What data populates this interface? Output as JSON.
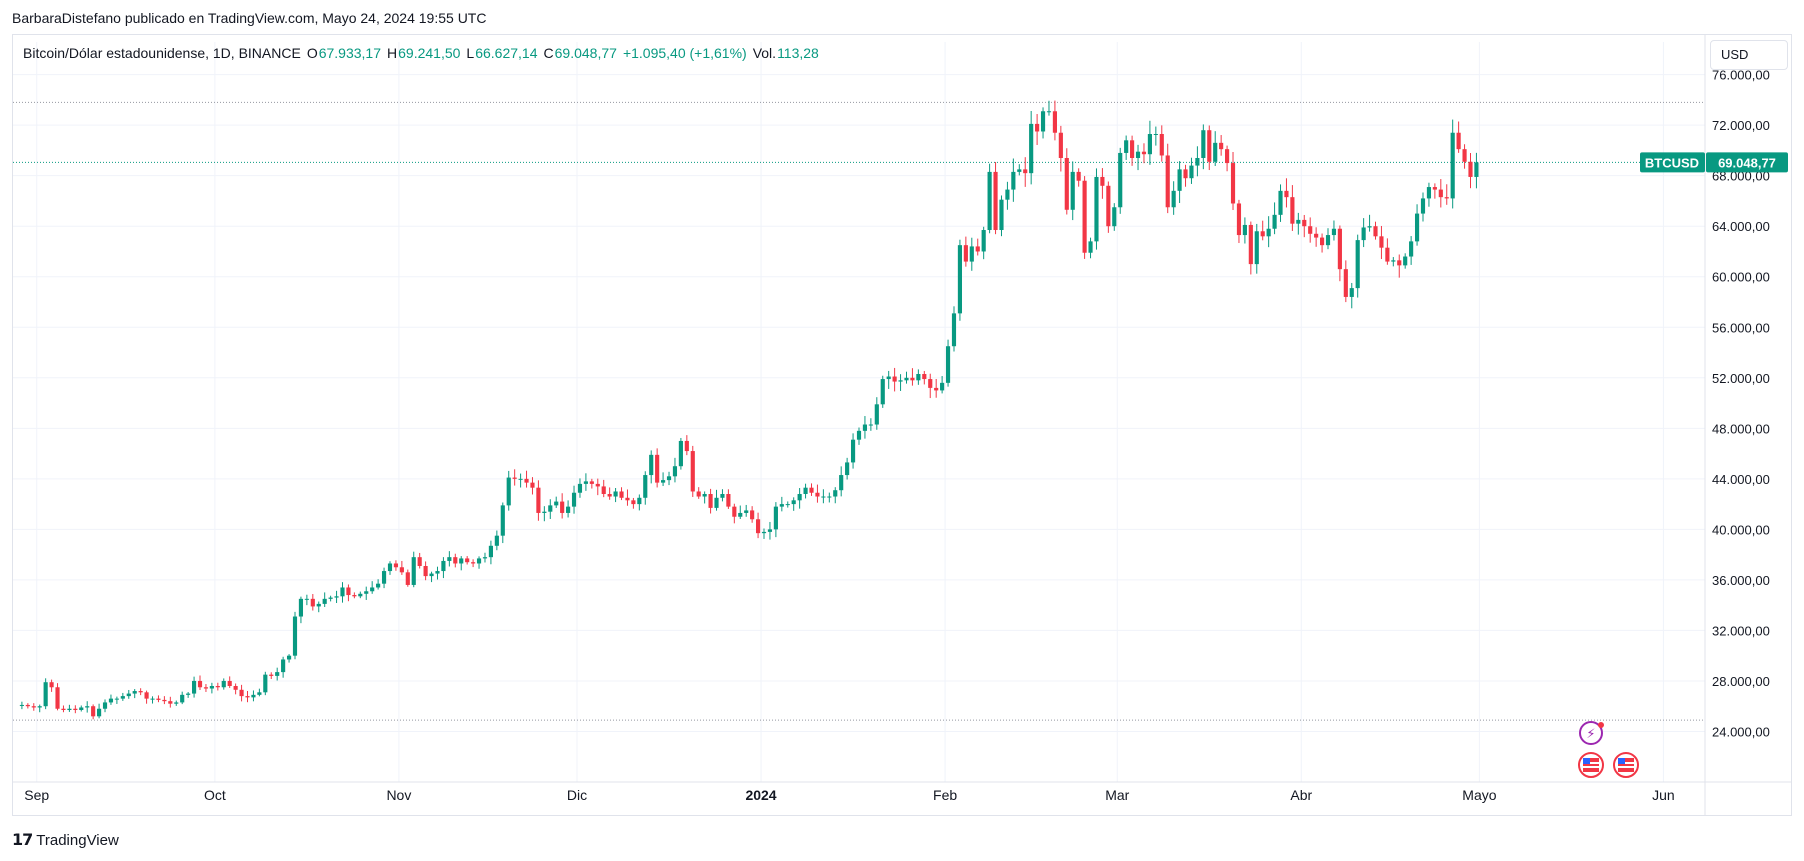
{
  "header": {
    "publisher_line": "BarbaraDistefano publicado en TradingView.com, Mayo 24, 2024 19:55 UTC"
  },
  "legend": {
    "symbol": "Bitcoin/Dólar estadounidense, 1D, BINANCE",
    "open_label": "O",
    "open_value": "67.933,17",
    "high_label": "H",
    "high_value": "69.241,50",
    "low_label": "L",
    "low_value": "66.627,14",
    "close_label": "C",
    "close_value": "69.048,77",
    "change": "+1.095,40 (+1,61%)",
    "vol_label": "Vol.",
    "vol_value": "113,28"
  },
  "currency_button": "USD",
  "price_tag": {
    "ticker": "BTCUSD",
    "price": "69.048,77"
  },
  "footer": {
    "brand": "TradingView"
  },
  "colors": {
    "up": "#089981",
    "down": "#f23645",
    "grid": "#f0f3fa",
    "text": "#131722",
    "dotted": "#9598a1"
  },
  "chart_data": {
    "type": "candlestick",
    "y_axis": {
      "ylim": [
        20000,
        77000
      ],
      "ticks": [
        24000,
        28000,
        32000,
        36000,
        40000,
        44000,
        48000,
        52000,
        56000,
        60000,
        64000,
        68000,
        72000,
        76000
      ],
      "tick_labels": [
        "24.000,00",
        "28.000,00",
        "32.000,00",
        "36.000,00",
        "40.000,00",
        "44.000,00",
        "48.000,00",
        "52.000,00",
        "56.000,00",
        "60.000,00",
        "64.000,00",
        "68.000,00",
        "72.000,00",
        "76.000,00"
      ],
      "position": "right"
    },
    "x_axis": {
      "range": [
        "2023-08-28",
        "2024-06-08"
      ],
      "ticks": [
        {
          "date": "2023-09-01",
          "label": "Sep",
          "bold": false
        },
        {
          "date": "2023-10-01",
          "label": "Oct",
          "bold": false
        },
        {
          "date": "2023-11-01",
          "label": "Nov",
          "bold": false
        },
        {
          "date": "2023-12-01",
          "label": "Dic",
          "bold": false
        },
        {
          "date": "2024-01-01",
          "label": "2024",
          "bold": true
        },
        {
          "date": "2024-02-01",
          "label": "Feb",
          "bold": false
        },
        {
          "date": "2024-03-01",
          "label": "Mar",
          "bold": false
        },
        {
          "date": "2024-04-01",
          "label": "Abr",
          "bold": false
        },
        {
          "date": "2024-05-01",
          "label": "Mayo",
          "bold": false
        },
        {
          "date": "2024-06-01",
          "label": "Jun",
          "bold": false
        }
      ]
    },
    "grid": true,
    "horizontal_levels": [
      73800,
      24900
    ],
    "last_price_level": 69048.77,
    "closes": [
      26100,
      26000,
      25900,
      26000,
      27900,
      27500,
      25800,
      25700,
      25800,
      25700,
      25900,
      26000,
      25200,
      25800,
      26300,
      26600,
      26600,
      26800,
      27000,
      27200,
      27100,
      26600,
      26600,
      26500,
      26400,
      26200,
      26300,
      26900,
      27000,
      28000,
      27500,
      27400,
      27600,
      27500,
      28000,
      27600,
      27300,
      26800,
      26700,
      26900,
      27100,
      28500,
      28400,
      28700,
      29700,
      30000,
      33100,
      34500,
      34500,
      33900,
      34100,
      34500,
      34600,
      34700,
      35400,
      34800,
      34700,
      34900,
      35100,
      35400,
      35700,
      36700,
      37300,
      37000,
      36600,
      35600,
      37800,
      37100,
      36300,
      36500,
      36700,
      37500,
      37800,
      37300,
      37700,
      37400,
      37300,
      37700,
      37800,
      38700,
      39500,
      41900,
      44100,
      44000,
      44000,
      43700,
      43300,
      41300,
      41400,
      41900,
      42200,
      41300,
      41800,
      42900,
      43600,
      43800,
      43600,
      43400,
      42800,
      42600,
      43000,
      42500,
      42300,
      42000,
      42500,
      44300,
      45900,
      43700,
      43900,
      44200,
      45000,
      47000,
      46200,
      43000,
      42600,
      42800,
      41700,
      42500,
      42800,
      41800,
      41000,
      41300,
      41500,
      40800,
      39700,
      39800,
      40000,
      41800,
      42000,
      42000,
      42300,
      42800,
      43300,
      42900,
      42600,
      42600,
      42600,
      43100,
      44300,
      45300,
      47100,
      47800,
      48300,
      48300,
      49900,
      51900,
      52100,
      51700,
      51800,
      52000,
      51800,
      52300,
      51900,
      51200,
      51000,
      51600,
      54500,
      57100,
      62500,
      61200,
      62400,
      62000,
      63700,
      68300,
      63700,
      66100,
      66900,
      68300,
      68500,
      68200,
      72100,
      71500,
      73100,
      73100,
      71400,
      69400,
      65300,
      68300,
      67600,
      61900,
      62800,
      67900,
      67200,
      64000,
      65500,
      69800,
      70800,
      69400,
      69900,
      69700,
      71300,
      71300,
      69600,
      65500,
      66800,
      68500,
      67800,
      68800,
      69400,
      71600,
      69100,
      70600,
      70100,
      69000,
      65800,
      63300,
      64100,
      61000,
      63600,
      63200,
      63800,
      64900,
      66800,
      66300,
      64200,
      64500,
      64000,
      63400,
      63100,
      62500,
      63300,
      63800,
      60600,
      58400,
      59100,
      62900,
      63900,
      64000,
      63200,
      62300,
      61200,
      61300,
      60900,
      61600,
      62800,
      65000,
      66200,
      67100,
      66900,
      66300,
      66200,
      71400,
      70100,
      69100,
      67900,
      69048.77
    ]
  }
}
